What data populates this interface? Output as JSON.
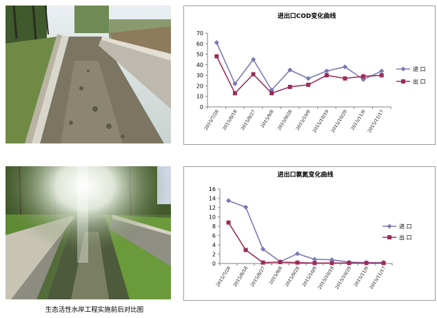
{
  "caption": "生态活性水岸工程实施前后对比图",
  "colors": {
    "inlet": "#7a79b4",
    "outlet": "#9c2b58",
    "axis": "#808080"
  },
  "chart_data": [
    {
      "type": "line",
      "title": "进出口COD变化曲线",
      "categories": [
        "2015/7/28",
        "2015/8/18",
        "2015/8/27",
        "2015/9/8",
        "2015/9/28",
        "2015/10/9",
        "2015/10/19",
        "2015/10/29",
        "2015/11/9",
        "2015/11/17"
      ],
      "x_tick_labels": [
        "2015/7/28",
        "2015/8/18",
        "2015/8/27",
        "2015/9/8",
        "2015/9/28",
        "2015/10/9",
        "2015/10/19",
        "2015/10/29",
        "2015/11/9",
        "2015/11/17"
      ],
      "ylim": [
        0,
        70
      ],
      "yticks": [
        0,
        10,
        20,
        30,
        40,
        50,
        60,
        70
      ],
      "legend_position": "right",
      "series": [
        {
          "name": "进 口",
          "marker": "diamond",
          "color": "#7a79b4",
          "values": [
            61,
            22,
            45,
            16,
            35,
            27,
            34,
            38,
            26,
            34
          ]
        },
        {
          "name": "出 口",
          "marker": "square",
          "color": "#9c2b58",
          "values": [
            48,
            13,
            31,
            13,
            19,
            21,
            30,
            27,
            29,
            30
          ]
        }
      ]
    },
    {
      "type": "line",
      "title": "进出口氨氮变化曲线",
      "categories": [
        "2015/7/28",
        "2015/8/18",
        "2015/8/27",
        "2015/9/8",
        "2015/9/28",
        "2015/10/9",
        "2015/10/19",
        "2015/10/29",
        "2015/11/9",
        "2015/11/17"
      ],
      "x_tick_labels": [
        "2015/7/28",
        "2015/8/18",
        "2015/8/27",
        "2015/9/8",
        "2015/9/28",
        "2015/10/9",
        "2015/10/19",
        "2015/10/29",
        "2015/11/9",
        "2015/11/17"
      ],
      "ylim": [
        0,
        16
      ],
      "yticks": [
        0,
        2,
        4,
        6,
        8,
        10,
        12,
        14,
        16
      ],
      "legend_position": "right",
      "series": [
        {
          "name": "进 口",
          "marker": "diamond",
          "color": "#7a79b4",
          "values": [
            13.5,
            12.1,
            3.1,
            0.4,
            2.1,
            0.9,
            0.8,
            0.3,
            0.2,
            0.2
          ]
        },
        {
          "name": "出 口",
          "marker": "square",
          "color": "#9c2b58",
          "values": [
            8.8,
            2.9,
            0.2,
            0.3,
            0.2,
            0.1,
            0.1,
            0.1,
            0.1,
            0.1
          ]
        }
      ]
    }
  ]
}
